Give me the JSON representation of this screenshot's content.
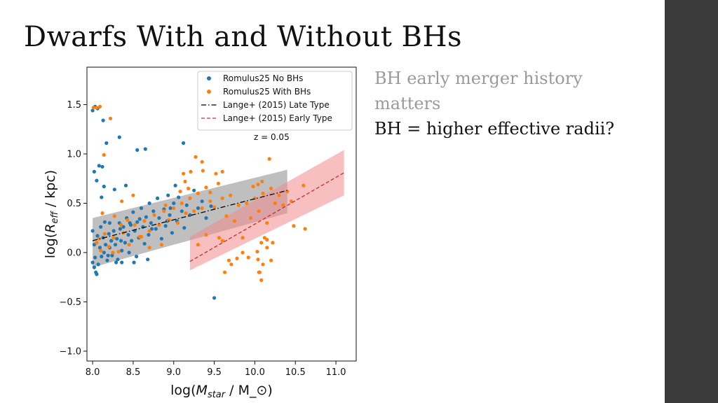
{
  "slide": {
    "title": "Dwarfs With and Without BHs",
    "notes": [
      "BH early merger history matters",
      "BH = higher effective radii?"
    ],
    "colors": {
      "side_bar": "#3b3b3b",
      "muted_text": "#9a9a9a"
    }
  },
  "chart_data": {
    "type": "scatter",
    "xlabel": "log(M_star / M_⊙)",
    "ylabel": "log(R_eff / kpc)",
    "xlim": [
      7.93,
      11.25
    ],
    "ylim": [
      -1.1,
      1.88
    ],
    "xticks": [
      8.0,
      8.5,
      9.0,
      9.5,
      10.0,
      10.5,
      11.0
    ],
    "yticks": [
      -1.0,
      -0.5,
      0.0,
      0.5,
      1.0,
      1.5
    ],
    "grid": false,
    "legend_position": "top-right",
    "annotation": "z = 0.05",
    "series": [
      {
        "name": "Romulus25 No BHs",
        "kind": "points",
        "color": "#1f77b4",
        "points": [
          [
            8.0,
            1.44
          ],
          [
            8.03,
            1.48
          ],
          [
            8.06,
            1.46
          ],
          [
            8.02,
            0.82
          ],
          [
            8.08,
            0.88
          ],
          [
            8.13,
            1.34
          ],
          [
            8.17,
            1.11
          ],
          [
            8.33,
            1.17
          ],
          [
            8.55,
            1.04
          ],
          [
            8.65,
            1.05
          ],
          [
            9.12,
            1.11
          ],
          [
            8.05,
            0.73
          ],
          [
            8.12,
            0.87
          ],
          [
            8.14,
            0.67
          ],
          [
            8.11,
            0.56
          ],
          [
            8.27,
            0.64
          ],
          [
            8.41,
            0.68
          ],
          [
            8.0,
            0.22
          ],
          [
            8.02,
            0.08
          ],
          [
            8.03,
            -0.05
          ],
          [
            8.0,
            -0.1
          ],
          [
            8.02,
            -0.15
          ],
          [
            8.04,
            -0.2
          ],
          [
            8.05,
            -0.22
          ],
          [
            8.07,
            -0.12
          ],
          [
            8.06,
            0.17
          ],
          [
            8.09,
            0.05
          ],
          [
            8.1,
            0.26
          ],
          [
            8.11,
            -0.04
          ],
          [
            8.13,
            0.15
          ],
          [
            8.14,
            0.0
          ],
          [
            8.15,
            0.31
          ],
          [
            8.16,
            0.08
          ],
          [
            8.18,
            -0.08
          ],
          [
            8.2,
            0.19
          ],
          [
            8.21,
            0.05
          ],
          [
            8.23,
            0.12
          ],
          [
            8.24,
            -0.03
          ],
          [
            8.26,
            0.22
          ],
          [
            8.28,
            0.08
          ],
          [
            8.3,
            0.14
          ],
          [
            8.31,
            -0.07
          ],
          [
            8.33,
            0.3
          ],
          [
            8.35,
            0.12
          ],
          [
            8.36,
            0.02
          ],
          [
            8.38,
            0.26
          ],
          [
            8.4,
            0.1
          ],
          [
            8.42,
            0.35
          ],
          [
            8.44,
            0.18
          ],
          [
            8.45,
            0.0
          ],
          [
            8.47,
            0.28
          ],
          [
            8.48,
            0.12
          ],
          [
            8.5,
            0.41
          ],
          [
            8.52,
            0.22
          ],
          [
            8.54,
            -0.04
          ],
          [
            8.55,
            0.31
          ],
          [
            8.57,
            0.15
          ],
          [
            8.6,
            0.45
          ],
          [
            8.62,
            0.26
          ],
          [
            8.64,
            0.09
          ],
          [
            8.66,
            0.36
          ],
          [
            8.69,
            0.18
          ],
          [
            8.7,
            0.5
          ],
          [
            8.72,
            0.3
          ],
          [
            8.75,
            0.42
          ],
          [
            8.78,
            0.24
          ],
          [
            8.8,
            0.55
          ],
          [
            8.82,
            0.35
          ],
          [
            8.85,
            0.14
          ],
          [
            8.88,
            0.44
          ],
          [
            8.9,
            0.27
          ],
          [
            8.93,
            0.58
          ],
          [
            8.95,
            0.38
          ],
          [
            8.98,
            0.2
          ],
          [
            9.0,
            0.5
          ],
          [
            9.02,
            0.68
          ],
          [
            9.04,
            0.32
          ],
          [
            9.06,
            0.56
          ],
          [
            9.1,
            0.42
          ],
          [
            9.13,
            0.25
          ],
          [
            9.16,
            0.48
          ],
          [
            9.2,
            0.38
          ],
          [
            9.25,
            0.63
          ],
          [
            9.3,
            0.45
          ],
          [
            9.35,
            0.52
          ],
          [
            9.4,
            0.35
          ],
          [
            9.46,
            0.47
          ],
          [
            9.5,
            -0.46
          ],
          [
            8.29,
            -0.1
          ],
          [
            8.36,
            -0.1
          ],
          [
            8.51,
            -0.1
          ],
          [
            8.68,
            -0.07
          ],
          [
            8.21,
            0.3
          ],
          [
            8.19,
            -0.03
          ],
          [
            8.34,
            0.24
          ],
          [
            8.46,
            0.3
          ],
          [
            8.58,
            0.34
          ],
          [
            8.73,
            0.24
          ],
          [
            8.92,
            0.32
          ],
          [
            8.96,
            0.45
          ]
        ]
      },
      {
        "name": "Romulus25 With BHs",
        "kind": "points",
        "color": "#ff7f0e",
        "points": [
          [
            8.01,
            1.47
          ],
          [
            8.05,
            1.47
          ],
          [
            8.09,
            1.48
          ],
          [
            8.22,
            1.36
          ],
          [
            8.14,
            0.99
          ],
          [
            9.27,
            0.97
          ],
          [
            9.35,
            0.92
          ],
          [
            10.18,
            0.95
          ],
          [
            8.12,
            0.4
          ],
          [
            8.27,
            0.37
          ],
          [
            8.36,
            0.52
          ],
          [
            8.5,
            0.58
          ],
          [
            8.43,
            0.33
          ],
          [
            8.05,
            0.1
          ],
          [
            8.08,
            0.14
          ],
          [
            8.1,
            0.02
          ],
          [
            8.15,
            0.19
          ],
          [
            8.2,
            0.06
          ],
          [
            8.26,
            0.15
          ],
          [
            8.32,
            0.01
          ],
          [
            8.38,
            0.2
          ],
          [
            8.45,
            0.08
          ],
          [
            8.52,
            0.28
          ],
          [
            8.58,
            0.16
          ],
          [
            8.64,
            0.32
          ],
          [
            8.7,
            0.22
          ],
          [
            8.76,
            0.38
          ],
          [
            8.82,
            0.28
          ],
          [
            8.88,
            0.42
          ],
          [
            8.94,
            0.33
          ],
          [
            9.0,
            0.45
          ],
          [
            9.05,
            0.3
          ],
          [
            9.1,
            0.5
          ],
          [
            9.15,
            0.4
          ],
          [
            9.2,
            0.55
          ],
          [
            9.25,
            0.42
          ],
          [
            9.3,
            0.6
          ],
          [
            9.35,
            0.45
          ],
          [
            9.4,
            0.66
          ],
          [
            9.45,
            0.52
          ],
          [
            9.5,
            0.46
          ],
          [
            9.55,
            0.7
          ],
          [
            9.6,
            0.55
          ],
          [
            9.65,
            0.37
          ],
          [
            9.7,
            0.58
          ],
          [
            9.75,
            0.32
          ],
          [
            9.8,
            0.48
          ],
          [
            9.85,
            0.15
          ],
          [
            9.9,
            0.5
          ],
          [
            9.95,
            0.35
          ],
          [
            10.0,
            0.55
          ],
          [
            10.05,
            0.42
          ],
          [
            10.1,
            0.6
          ],
          [
            10.15,
            0.3
          ],
          [
            10.2,
            0.65
          ],
          [
            10.25,
            0.5
          ],
          [
            10.3,
            0.58
          ],
          [
            10.35,
            0.48
          ],
          [
            10.4,
            0.62
          ],
          [
            10.45,
            0.52
          ],
          [
            10.6,
            0.68
          ],
          [
            10.62,
            0.24
          ],
          [
            10.48,
            0.27
          ],
          [
            9.12,
            0.8
          ],
          [
            9.21,
            0.82
          ],
          [
            9.36,
            0.83
          ],
          [
            9.52,
            0.8
          ],
          [
            9.6,
            0.82
          ],
          [
            9.14,
            0.72
          ],
          [
            9.45,
            0.61
          ],
          [
            10.04,
            0.69
          ],
          [
            10.09,
            0.72
          ],
          [
            9.98,
            0.67
          ],
          [
            10.08,
            0.1
          ],
          [
            10.12,
            0.15
          ],
          [
            10.15,
            0.05
          ],
          [
            10.22,
            0.1
          ],
          [
            10.03,
            0.01
          ],
          [
            9.92,
            -0.05
          ],
          [
            9.71,
            -0.12
          ],
          [
            9.63,
            -0.2
          ],
          [
            9.85,
            0.0
          ],
          [
            10.04,
            -0.07
          ],
          [
            10.06,
            -0.2
          ],
          [
            10.1,
            -0.12
          ],
          [
            10.05,
            -0.2
          ],
          [
            10.08,
            -0.28
          ],
          [
            10.2,
            -0.08
          ],
          [
            10.15,
            0.13
          ],
          [
            9.68,
            -0.08
          ],
          [
            9.78,
            -0.06
          ],
          [
            9.6,
            0.12
          ],
          [
            9.56,
            0.15
          ],
          [
            9.3,
            0.08
          ],
          [
            9.4,
            0.18
          ],
          [
            8.85,
            0.08
          ],
          [
            8.7,
            0.05
          ],
          [
            8.6,
            0.16
          ],
          [
            8.25,
            0.0
          ],
          [
            8.35,
            0.28
          ],
          [
            8.9,
            0.48
          ],
          [
            9.08,
            0.62
          ],
          [
            9.18,
            0.65
          ]
        ]
      },
      {
        "name": "Lange+ (2015) Late Type",
        "kind": "line",
        "color": "#000000",
        "dash": "dashdot",
        "band_color": "#8a8a8a",
        "x": [
          8.0,
          10.4
        ],
        "y": [
          0.12,
          0.63
        ],
        "band_lower": [
          -0.15,
          0.4
        ],
        "band_upper": [
          0.35,
          0.84
        ]
      },
      {
        "name": "Lange+ (2015) Early Type",
        "kind": "line",
        "color": "#d62728",
        "dash": "dashed",
        "band_color": "#f08a8a",
        "x": [
          9.2,
          11.1
        ],
        "y": [
          -0.09,
          0.81
        ],
        "band_lower": [
          -0.18,
          0.58
        ],
        "band_upper": [
          0.16,
          1.04
        ]
      }
    ]
  }
}
